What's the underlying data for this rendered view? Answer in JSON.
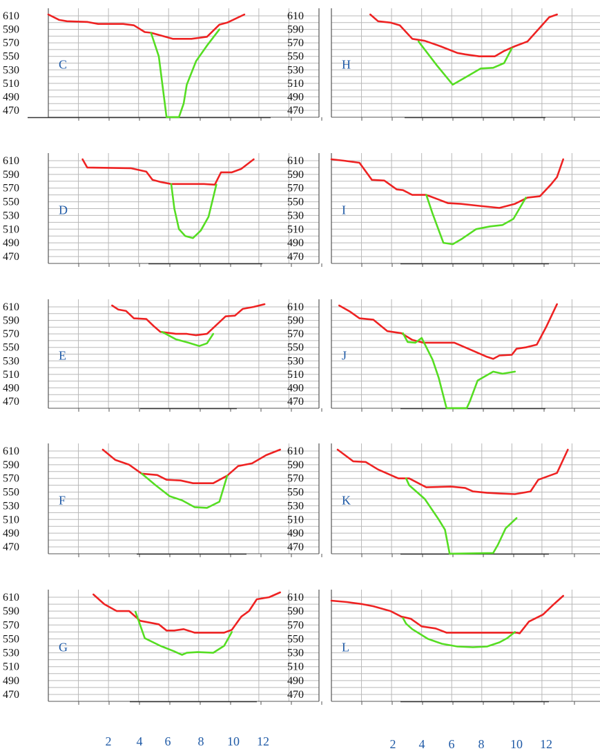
{
  "colors": {
    "existing": "#ee2222",
    "proposed": "#55dd22",
    "grid": "#b8b8b8",
    "frame": "#555555",
    "label": "#1f5aa6"
  },
  "y_ticks": [
    610,
    590,
    570,
    550,
    530,
    510,
    490,
    470
  ],
  "x_ticks": [
    2,
    4,
    6,
    8,
    10,
    12
  ],
  "chart_data": [
    {
      "type": "line",
      "label": "C",
      "ylim": [
        460,
        612
      ],
      "xlim": [
        0,
        17.4
      ],
      "series": [
        {
          "color": "#ee2222",
          "x": [
            0,
            0.7,
            1.2,
            2.5,
            3.2,
            4.8,
            5.5,
            6.2,
            6.6,
            8.0,
            9.2,
            10.2,
            11.0,
            11.5,
            12.6
          ],
          "y": [
            612,
            604,
            602,
            601,
            598,
            598,
            596,
            586,
            585,
            576,
            576,
            579,
            597,
            600,
            612
          ]
        },
        {
          "color": "#55dd22",
          "x": [
            6.6,
            7.1,
            7.6,
            8.4,
            8.7,
            8.9,
            9.5,
            10.2,
            11.0
          ],
          "y": [
            585,
            550,
            460,
            460,
            480,
            508,
            543,
            566,
            590
          ]
        }
      ]
    },
    {
      "type": "line",
      "label": "H",
      "ylim": [
        460,
        612
      ],
      "xlim": [
        0,
        17.4
      ],
      "series": [
        {
          "color": "#ee2222",
          "x": [
            2.5,
            3.0,
            3.8,
            4.4,
            5.2,
            6.0,
            7.0,
            8.1,
            8.6,
            9.5,
            10.5,
            11.1,
            11.8,
            12.6,
            14.0,
            14.5
          ],
          "y": [
            612,
            602,
            600,
            596,
            576,
            573,
            565,
            555,
            553,
            550,
            550,
            558,
            565,
            572,
            608,
            612
          ]
        },
        {
          "color": "#55dd22",
          "x": [
            5.6,
            6.8,
            7.8,
            8.7,
            9.6,
            10.4,
            11.1,
            11.6
          ],
          "y": [
            572,
            536,
            508,
            520,
            532,
            533,
            540,
            562
          ]
        }
      ]
    },
    {
      "type": "line",
      "label": "D",
      "ylim": [
        460,
        612
      ],
      "xlim": [
        0,
        17.4
      ],
      "series": [
        {
          "color": "#ee2222",
          "x": [
            2.2,
            2.5,
            5.3,
            6.3,
            6.7,
            7.2,
            7.9,
            8.5,
            10.0,
            10.7,
            11.1,
            11.8,
            12.4,
            13.2
          ],
          "y": [
            612,
            600,
            599,
            594,
            582,
            579,
            576,
            576,
            576,
            575,
            593,
            593,
            598,
            612
          ]
        },
        {
          "color": "#55dd22",
          "x": [
            7.9,
            8.1,
            8.4,
            8.8,
            9.3,
            9.8,
            10.3,
            10.8
          ],
          "y": [
            576,
            540,
            510,
            500,
            497,
            508,
            528,
            575
          ]
        }
      ]
    },
    {
      "type": "line",
      "label": "I",
      "ylim": [
        460,
        612
      ],
      "xlim": [
        0,
        17.4
      ],
      "series": [
        {
          "color": "#ee2222",
          "x": [
            0,
            0.8,
            1.8,
            2.6,
            3.4,
            4.2,
            4.6,
            5.2,
            6.1,
            7.5,
            8.3,
            9.5,
            10.8,
            11.8,
            12.6,
            13.4,
            14.1,
            14.5,
            14.9
          ],
          "y": [
            612,
            610,
            607,
            582,
            581,
            568,
            567,
            560,
            560,
            548,
            547,
            544,
            541,
            547,
            556,
            558,
            575,
            586,
            612
          ]
        },
        {
          "color": "#55dd22",
          "x": [
            6.1,
            6.5,
            7.2,
            7.8,
            8.4,
            9.3,
            10.2,
            11.0,
            11.7,
            12.5
          ],
          "y": [
            560,
            533,
            490,
            488,
            496,
            510,
            514,
            516,
            525,
            556
          ]
        }
      ]
    },
    {
      "type": "line",
      "label": "E",
      "ylim": [
        460,
        612
      ],
      "xlim": [
        0,
        17.4
      ],
      "series": [
        {
          "color": "#ee2222",
          "x": [
            4.1,
            4.5,
            5.0,
            5.5,
            6.3,
            6.8,
            7.2,
            8.2,
            8.9,
            9.5,
            10.2,
            11.4,
            12.0,
            12.5,
            13.2,
            13.9
          ],
          "y": [
            612,
            606,
            604,
            593,
            592,
            581,
            573,
            570,
            570,
            568,
            570,
            596,
            597,
            607,
            610,
            614
          ]
        },
        {
          "color": "#55dd22",
          "x": [
            7.3,
            8.2,
            9.0,
            9.7,
            10.2,
            10.6
          ],
          "y": [
            573,
            562,
            557,
            552,
            556,
            570
          ]
        }
      ]
    },
    {
      "type": "line",
      "label": "J",
      "ylim": [
        460,
        612
      ],
      "xlim": [
        0,
        17.4
      ],
      "series": [
        {
          "color": "#ee2222",
          "x": [
            0.5,
            1.2,
            1.8,
            2.7,
            3.6,
            4.5,
            5.2,
            5.9,
            6.8,
            7.9,
            8.3,
            10.0,
            10.4,
            10.8,
            11.6,
            11.9,
            12.5,
            13.2,
            13.8,
            14.5
          ],
          "y": [
            612,
            603,
            593,
            591,
            574,
            571,
            561,
            557,
            557,
            557,
            553,
            536,
            533,
            538,
            539,
            548,
            550,
            554,
            580,
            614
          ]
        },
        {
          "color": "#55dd22",
          "x": [
            4.6,
            4.9,
            5.4,
            5.8,
            6.5,
            6.9,
            7.4,
            8.7,
            8.9,
            9.4,
            10.4,
            11.0,
            11.8
          ],
          "y": [
            571,
            558,
            557,
            564,
            532,
            505,
            460,
            460,
            470,
            501,
            514,
            511,
            514
          ]
        }
      ]
    },
    {
      "type": "line",
      "label": "F",
      "ylim": [
        460,
        612
      ],
      "xlim": [
        0,
        17.4
      ],
      "series": [
        {
          "color": "#ee2222",
          "x": [
            3.5,
            4.3,
            5.2,
            6.0,
            7.0,
            7.6,
            8.5,
            9.3,
            10.6,
            11.5,
            12.2,
            13.1,
            14.0,
            14.9
          ],
          "y": [
            612,
            597,
            590,
            577,
            575,
            568,
            567,
            563,
            563,
            574,
            588,
            592,
            604,
            612
          ]
        },
        {
          "color": "#55dd22",
          "x": [
            6.0,
            6.9,
            7.8,
            8.6,
            9.4,
            10.2,
            11.0,
            11.5
          ],
          "y": [
            577,
            560,
            544,
            538,
            528,
            527,
            536,
            574
          ]
        }
      ]
    },
    {
      "type": "line",
      "label": "K",
      "ylim": [
        460,
        612
      ],
      "xlim": [
        0,
        17.4
      ],
      "series": [
        {
          "color": "#ee2222",
          "x": [
            0.4,
            1.4,
            2.2,
            3.0,
            4.3,
            5.0,
            6.1,
            7.7,
            8.6,
            9.1,
            10.0,
            10.8,
            11.8,
            12.8,
            13.3,
            14.5,
            15.2
          ],
          "y": [
            612,
            595,
            594,
            583,
            570,
            570,
            557,
            558,
            556,
            551,
            549,
            548,
            547,
            551,
            568,
            578,
            612
          ]
        },
        {
          "color": "#55dd22",
          "x": [
            4.8,
            5.0,
            6.0,
            6.9,
            7.3,
            7.6,
            10.4,
            10.7,
            11.2,
            11.9
          ],
          "y": [
            570,
            560,
            540,
            510,
            495,
            460,
            461,
            473,
            497,
            512
          ]
        }
      ]
    },
    {
      "type": "line",
      "label": "G",
      "ylim": [
        460,
        612
      ],
      "xlim": [
        0,
        17.4
      ],
      "series": [
        {
          "color": "#ee2222",
          "x": [
            2.9,
            3.6,
            4.4,
            5.2,
            5.9,
            6.4,
            7.1,
            7.6,
            8.1,
            8.7,
            9.4,
            10.1,
            11.3,
            11.8,
            12.4,
            12.9,
            13.4,
            14.2,
            14.9
          ],
          "y": [
            614,
            600,
            590,
            590,
            576,
            574,
            571,
            562,
            562,
            564,
            559,
            559,
            559,
            563,
            582,
            590,
            607,
            610,
            617
          ]
        },
        {
          "color": "#55dd22",
          "x": [
            5.6,
            6.2,
            7.2,
            8.1,
            8.6,
            8.9,
            9.6,
            10.6,
            11.3,
            11.8
          ],
          "y": [
            589,
            551,
            540,
            532,
            527,
            530,
            531,
            530,
            540,
            560
          ]
        }
      ]
    },
    {
      "type": "line",
      "label": "L",
      "ylim": [
        460,
        612
      ],
      "xlim": [
        0,
        17.4
      ],
      "series": [
        {
          "color": "#ee2222",
          "x": [
            0,
            1.0,
            2.0,
            2.7,
            3.8,
            4.5,
            5.1,
            5.8,
            6.7,
            7.4,
            9.0,
            10.1,
            11.0,
            11.9,
            12.1,
            12.7,
            13.6,
            14.3,
            14.9
          ],
          "y": [
            605,
            603,
            600,
            597,
            590,
            582,
            579,
            568,
            565,
            559,
            559,
            559,
            559,
            559,
            558,
            575,
            585,
            600,
            612
          ]
        },
        {
          "color": "#55dd22",
          "x": [
            4.6,
            4.8,
            5.2,
            6.2,
            7.1,
            8.1,
            9.1,
            10.0,
            10.8,
            11.3,
            11.8
          ],
          "y": [
            580,
            572,
            564,
            550,
            543,
            539,
            538,
            539,
            545,
            551,
            560
          ]
        }
      ]
    }
  ]
}
